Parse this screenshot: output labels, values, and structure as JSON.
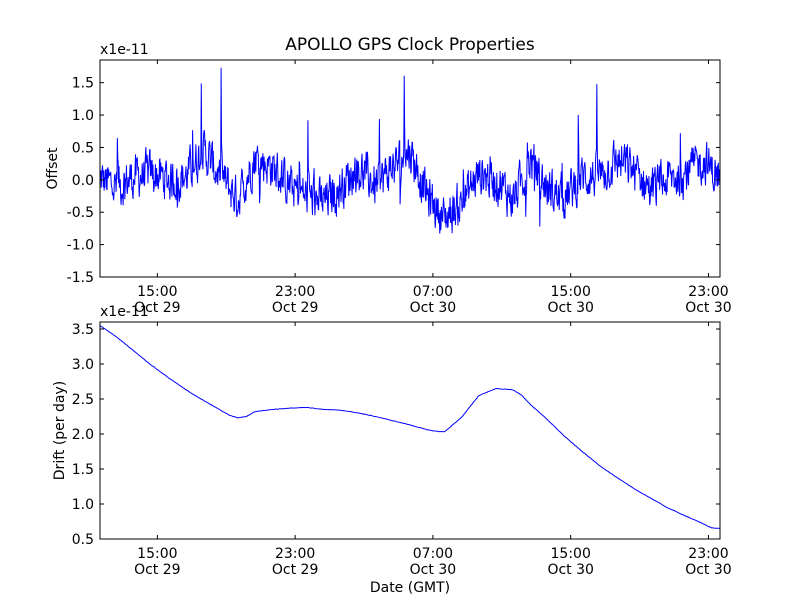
{
  "title": "APOLLO GPS Clock Properties",
  "chart_data": [
    {
      "type": "line",
      "title": "APOLLO GPS Clock Properties",
      "ylabel": "Offset",
      "xlabel": "",
      "exponent_label": "x1e-11",
      "x_unit": "hours since Oct 29 11:40 GMT",
      "xlim": [
        0,
        36
      ],
      "ylim": [
        -1.5,
        1.85
      ],
      "yticks": [
        {
          "value": -1.5,
          "label": "-1.5"
        },
        {
          "value": -1.0,
          "label": "-1.0"
        },
        {
          "value": -0.5,
          "label": "-0.5"
        },
        {
          "value": 0.0,
          "label": "0.0"
        },
        {
          "value": 0.5,
          "label": "0.5"
        },
        {
          "value": 1.0,
          "label": "1.0"
        },
        {
          "value": 1.5,
          "label": "1.5"
        }
      ],
      "xticks": [
        {
          "value": 3.33,
          "time": "15:00",
          "date": "Oct 29"
        },
        {
          "value": 11.33,
          "time": "23:00",
          "date": "Oct 29"
        },
        {
          "value": 19.33,
          "time": "07:00",
          "date": "Oct 30"
        },
        {
          "value": 27.33,
          "time": "15:00",
          "date": "Oct 30"
        },
        {
          "value": 35.33,
          "time": "23:00",
          "date": "Oct 30"
        }
      ],
      "series": [
        {
          "color": "#0000ff",
          "noisy": true,
          "noise_amplitude": 0.28,
          "x": [
            0,
            1,
            2,
            3,
            4,
            5,
            6,
            7,
            8,
            9,
            10,
            11,
            12,
            13,
            14,
            15,
            16,
            17,
            18,
            19,
            20,
            21,
            22,
            23,
            24,
            25,
            26,
            27,
            28,
            29,
            30,
            31,
            32,
            33,
            34,
            35,
            36
          ],
          "y": [
            0.0,
            -0.1,
            0.05,
            0.1,
            0.0,
            0.05,
            0.45,
            0.05,
            -0.3,
            0.35,
            0.2,
            -0.1,
            -0.25,
            -0.35,
            -0.1,
            0.2,
            -0.1,
            0.2,
            0.45,
            -0.25,
            -0.6,
            -0.35,
            0.1,
            0.0,
            -0.3,
            0.3,
            -0.15,
            -0.3,
            0.05,
            0.05,
            0.3,
            0.15,
            -0.15,
            0.0,
            0.1,
            0.3,
            0.0
          ]
        }
      ]
    },
    {
      "type": "line",
      "title": "",
      "ylabel": "Drift (per day)",
      "xlabel": "Date (GMT)",
      "exponent_label": "x1e-11",
      "x_unit": "hours since Oct 29 11:40 GMT",
      "xlim": [
        0,
        36
      ],
      "ylim": [
        0.5,
        3.6
      ],
      "yticks": [
        {
          "value": 0.5,
          "label": "0.5"
        },
        {
          "value": 1.0,
          "label": "1.0"
        },
        {
          "value": 1.5,
          "label": "1.5"
        },
        {
          "value": 2.0,
          "label": "2.0"
        },
        {
          "value": 2.5,
          "label": "2.5"
        },
        {
          "value": 3.0,
          "label": "3.0"
        },
        {
          "value": 3.5,
          "label": "3.5"
        }
      ],
      "xticks": [
        {
          "value": 3.33,
          "time": "15:00",
          "date": "Oct 29"
        },
        {
          "value": 11.33,
          "time": "23:00",
          "date": "Oct 29"
        },
        {
          "value": 19.33,
          "time": "07:00",
          "date": "Oct 30"
        },
        {
          "value": 27.33,
          "time": "15:00",
          "date": "Oct 30"
        },
        {
          "value": 35.33,
          "time": "23:00",
          "date": "Oct 30"
        }
      ],
      "series": [
        {
          "color": "#0000ff",
          "noisy": false,
          "x": [
            0,
            1,
            2,
            3,
            4,
            5,
            6,
            7,
            7.5,
            8,
            8.5,
            9,
            10,
            11,
            12,
            13,
            14,
            15,
            16,
            17,
            18,
            19,
            19.5,
            20,
            21,
            22,
            23,
            24,
            24.5,
            25,
            26,
            27,
            28,
            29,
            30,
            31,
            32,
            33,
            34,
            35,
            35.5,
            36
          ],
          "y": [
            3.55,
            3.38,
            3.18,
            2.98,
            2.8,
            2.63,
            2.48,
            2.34,
            2.27,
            2.23,
            2.25,
            2.32,
            2.35,
            2.37,
            2.38,
            2.35,
            2.34,
            2.3,
            2.25,
            2.19,
            2.13,
            2.06,
            2.04,
            2.03,
            2.24,
            2.55,
            2.65,
            2.63,
            2.55,
            2.42,
            2.2,
            1.96,
            1.75,
            1.55,
            1.38,
            1.22,
            1.08,
            0.94,
            0.83,
            0.72,
            0.66,
            0.65
          ]
        }
      ]
    }
  ]
}
